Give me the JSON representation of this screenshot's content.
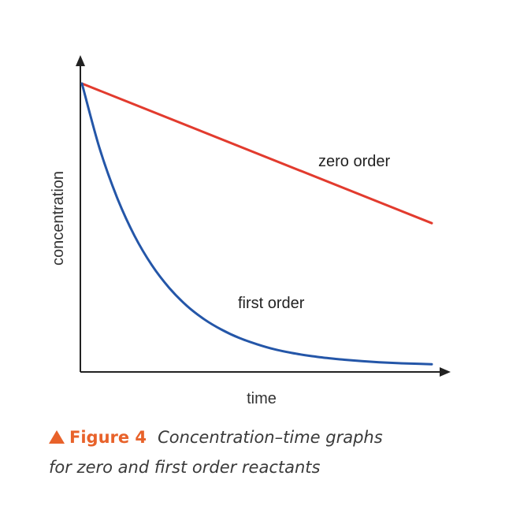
{
  "chart_data": {
    "type": "line",
    "title": "",
    "xlabel": "time",
    "ylabel": "concentration",
    "xlim": [
      0,
      10
    ],
    "ylim": [
      0,
      10
    ],
    "grid": false,
    "legend": "none",
    "series": [
      {
        "name": "zero order",
        "color": "#e23b2e",
        "x": [
          0,
          10
        ],
        "y": [
          10,
          5.05
        ]
      },
      {
        "name": "first order",
        "color": "#2456a8",
        "x": [
          0,
          0.5,
          1,
          1.5,
          2,
          2.5,
          3,
          3.5,
          4,
          4.5,
          5,
          5.5,
          6,
          6.5,
          7,
          7.5,
          8,
          8.5,
          9,
          9.5,
          10
        ],
        "y": [
          10,
          7.72,
          5.97,
          4.61,
          3.56,
          2.75,
          2.12,
          1.64,
          1.27,
          0.98,
          0.76,
          0.58,
          0.45,
          0.35,
          0.27,
          0.21,
          0.16,
          0.12,
          0.09,
          0.07,
          0.05
        ]
      }
    ]
  },
  "caption": {
    "figure_label": "Figure 4",
    "text_line1": "Concentration–time graphs",
    "text_line2": "for zero and first order reactants",
    "marker_color": "#e8622a"
  }
}
